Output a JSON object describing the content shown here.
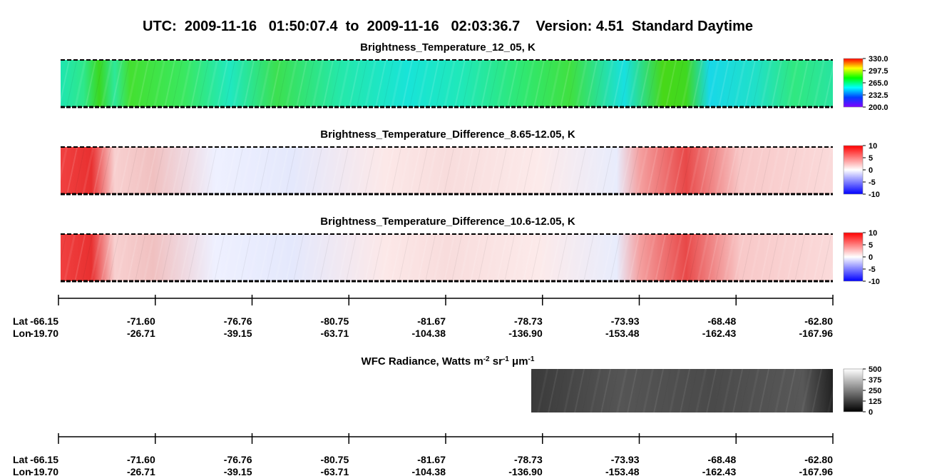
{
  "title": "UTC:  2009-11-16   01:50:07.4  to  2009-11-16   02:03:36.7    Version: 4.51  Standard Daytime",
  "panels": [
    {
      "title": "Brightness_Temperature_12_05, K",
      "colormap": "rainbow",
      "colorbar_lim": [
        200,
        330
      ],
      "colorbar_ticks": [
        {
          "value": 200,
          "label": "200.0"
        },
        {
          "value": 232.5,
          "label": "232.5"
        },
        {
          "value": 265,
          "label": "265.0"
        },
        {
          "value": 297.5,
          "label": "297.5"
        },
        {
          "value": 330,
          "label": "330.0"
        }
      ]
    },
    {
      "title": "Brightness_Temperature_Difference_8.65-12.05, K",
      "colormap": "diverging",
      "colorbar_lim": [
        -10,
        10
      ],
      "colorbar_ticks": [
        -10,
        -5,
        0,
        5,
        10
      ]
    },
    {
      "title": "Brightness_Temperature_Difference_10.6-12.05, K",
      "colormap": "diverging",
      "colorbar_lim": [
        -10,
        10
      ],
      "colorbar_ticks": [
        -10,
        -5,
        0,
        5,
        10
      ]
    }
  ],
  "wfc": {
    "title": [
      {
        "text": "WFC Radiance, Watts m"
      },
      {
        "text": "-2",
        "sup": true
      },
      {
        "text": " sr"
      },
      {
        "text": "-1",
        "sup": true
      },
      {
        "text": " μm"
      },
      {
        "text": "-1",
        "sup": true
      }
    ],
    "colormap": "gray",
    "colorbar_lim": [
      0,
      500
    ],
    "colorbar_ticks": [
      0,
      125,
      250,
      375,
      500
    ]
  },
  "geo_axes": [
    {
      "lat_label": "Lat",
      "lon_label": "Lon",
      "lat": [
        -66.15,
        {
          "value": -71.6,
          "label": "-71.60"
        },
        -76.76,
        -80.75,
        -81.67,
        -78.73,
        -73.93,
        -68.48,
        {
          "value": -62.8,
          "label": "-62.80"
        }
      ],
      "lon": [
        {
          "value": -19.7,
          "label": "-19.70"
        },
        -26.71,
        -39.15,
        -63.71,
        -104.38,
        {
          "value": -136.9,
          "label": "-136.90"
        },
        -153.48,
        -162.43,
        -167.96
      ]
    },
    {
      "lat_label": "Lat",
      "lon_label": "Lon",
      "lat": [
        -66.15,
        {
          "value": -71.6,
          "label": "-71.60"
        },
        -76.76,
        -80.75,
        -81.67,
        -78.73,
        -73.93,
        -68.48,
        {
          "value": -62.8,
          "label": "-62.80"
        }
      ],
      "lon": [
        {
          "value": -19.7,
          "label": "-19.70"
        },
        -26.71,
        -39.15,
        -63.71,
        -104.38,
        {
          "value": -136.9,
          "label": "-136.90"
        },
        -153.48,
        -162.43,
        -167.96
      ]
    }
  ]
}
